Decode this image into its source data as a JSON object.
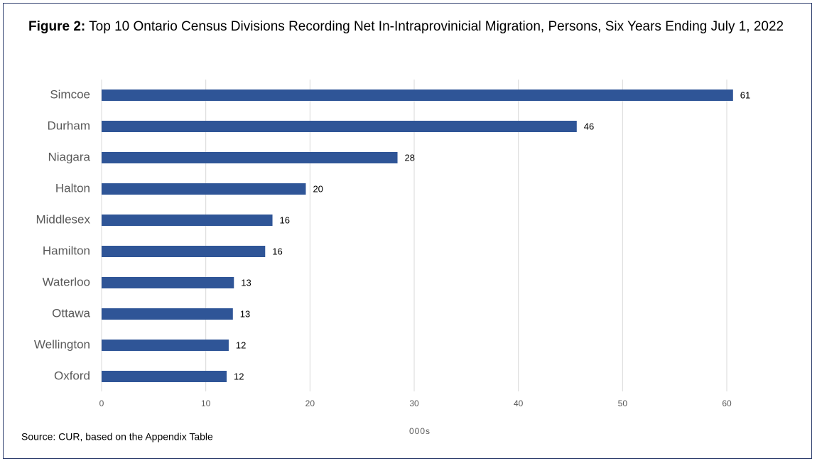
{
  "chart_data": {
    "type": "bar",
    "orientation": "horizontal",
    "title_prefix": "Figure 2:",
    "title": "Top 10 Ontario Census Divisions Recording Net In-Intraprovinicial Migration, Persons, Six Years Ending July 1, 2022",
    "categories": [
      "Simcoe",
      "Durham",
      "Niagara",
      "Halton",
      "Middlesex",
      "Hamilton",
      "Waterloo",
      "Ottawa",
      "Wellington",
      "Oxford"
    ],
    "values": [
      60.6,
      45.6,
      28.4,
      19.6,
      16.4,
      15.7,
      12.7,
      12.6,
      12.2,
      12.0
    ],
    "value_labels": [
      "61",
      "46",
      "28",
      "20",
      "16",
      "16",
      "13",
      "13",
      "12",
      "12"
    ],
    "color": "#2f5597",
    "xlim": [
      0,
      60
    ],
    "xticks": [
      0,
      10,
      20,
      30,
      40,
      50,
      60
    ],
    "grid": true,
    "x_label": "000s",
    "source": "Source: CUR, based on the Appendix Table"
  }
}
